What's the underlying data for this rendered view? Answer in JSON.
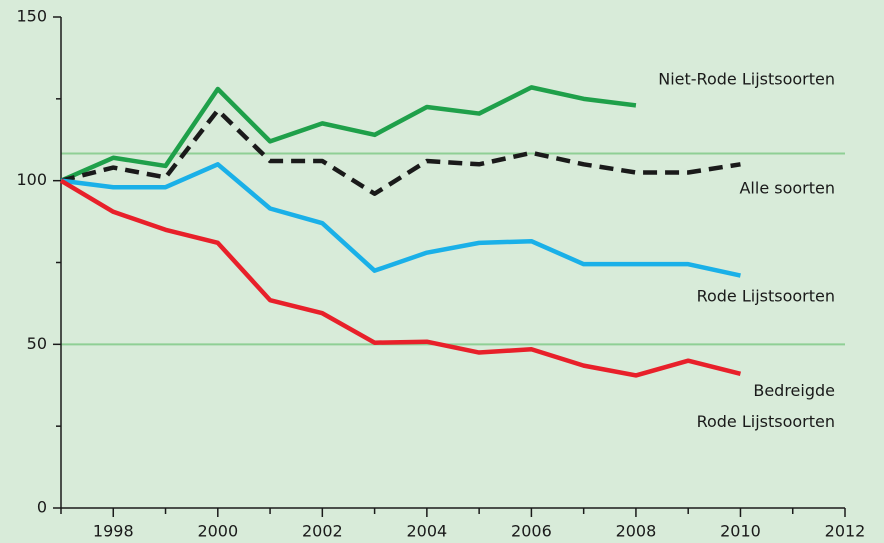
{
  "chart_data": {
    "type": "line",
    "x": [
      1997,
      1998,
      1999,
      2000,
      2001,
      2002,
      2003,
      2004,
      2005,
      2006,
      2007,
      2008,
      2009,
      2010
    ],
    "series": [
      {
        "name": "Niet-Rode Lijstsoorten",
        "color": "#1fa04a",
        "dash": false,
        "values": [
          100,
          107,
          104.5,
          128,
          112,
          117.5,
          114,
          122.5,
          120.5,
          128.5,
          125,
          123,
          null,
          null
        ]
      },
      {
        "name": "Alle soorten",
        "color": "#1a1a1a",
        "dash": true,
        "values": [
          100,
          104,
          101,
          121.5,
          106,
          106,
          96,
          106,
          105,
          108.5,
          105,
          102.5,
          102.5,
          105
        ]
      },
      {
        "name": "Rode Lijstsoorten",
        "color": "#1ab0e8",
        "dash": false,
        "values": [
          100,
          98,
          98,
          105,
          91.5,
          87,
          72.5,
          78,
          81,
          81.5,
          74.5,
          74.5,
          74.5,
          71
        ]
      },
      {
        "name": "Bedreigde Rode Lijstsoorten",
        "color": "#e8202a",
        "dash": false,
        "values": [
          100,
          90.5,
          85,
          81,
          63.5,
          59.5,
          50.5,
          50.8,
          47.5,
          48.5,
          43.5,
          40.5,
          45,
          41
        ]
      }
    ],
    "xlim": [
      1997,
      2012
    ],
    "xticks": [
      1998,
      2000,
      2002,
      2004,
      2006,
      2008,
      2010,
      2012
    ],
    "xminorticks": [
      1997,
      1999,
      2001,
      2003,
      2005,
      2007,
      2009,
      2011
    ],
    "ylim": [
      0,
      150
    ],
    "yticks": [
      0,
      50,
      100,
      150
    ],
    "yminorticks": [
      25,
      75,
      125
    ],
    "reference_lines": [
      108.3,
      50
    ],
    "reference_color": "#8fcf95"
  }
}
